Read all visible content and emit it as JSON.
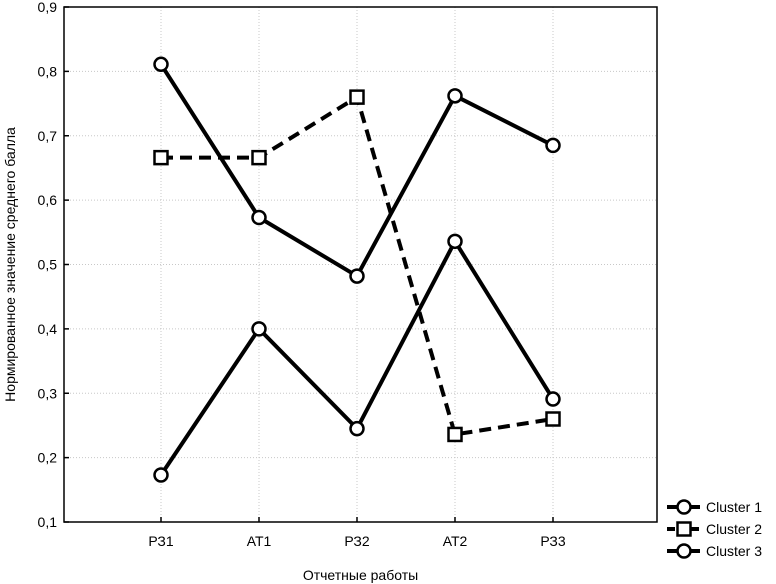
{
  "chart_data": {
    "type": "line",
    "categories": [
      "РЗ1",
      "АТ1",
      "РЗ2",
      "АТ2",
      "РЗ3"
    ],
    "xlabel": "Отчетные работы",
    "ylabel": "Нормированное значение среднего балла",
    "ylim": [
      0.1,
      0.9
    ],
    "yticks": [
      0.1,
      0.2,
      0.3,
      0.4,
      0.5,
      0.6,
      0.7,
      0.8,
      0.9
    ],
    "ytick_labels": [
      "0,1",
      "0,2",
      "0,3",
      "0,4",
      "0,5",
      "0,6",
      "0,7",
      "0,8",
      "0,9"
    ],
    "grid": true,
    "legend": "bottom-right",
    "series": [
      {
        "name": "Cluster 1",
        "marker": "circle",
        "linestyle": "solid",
        "values": [
          0.173,
          0.4,
          0.245,
          0.536,
          0.291
        ]
      },
      {
        "name": "Cluster 2",
        "marker": "square",
        "linestyle": "dashed",
        "values": [
          0.666,
          0.666,
          0.76,
          0.236,
          0.26
        ]
      },
      {
        "name": "Cluster 3",
        "marker": "circle",
        "linestyle": "solid",
        "values": [
          0.811,
          0.573,
          0.482,
          0.762,
          0.685
        ]
      }
    ]
  }
}
